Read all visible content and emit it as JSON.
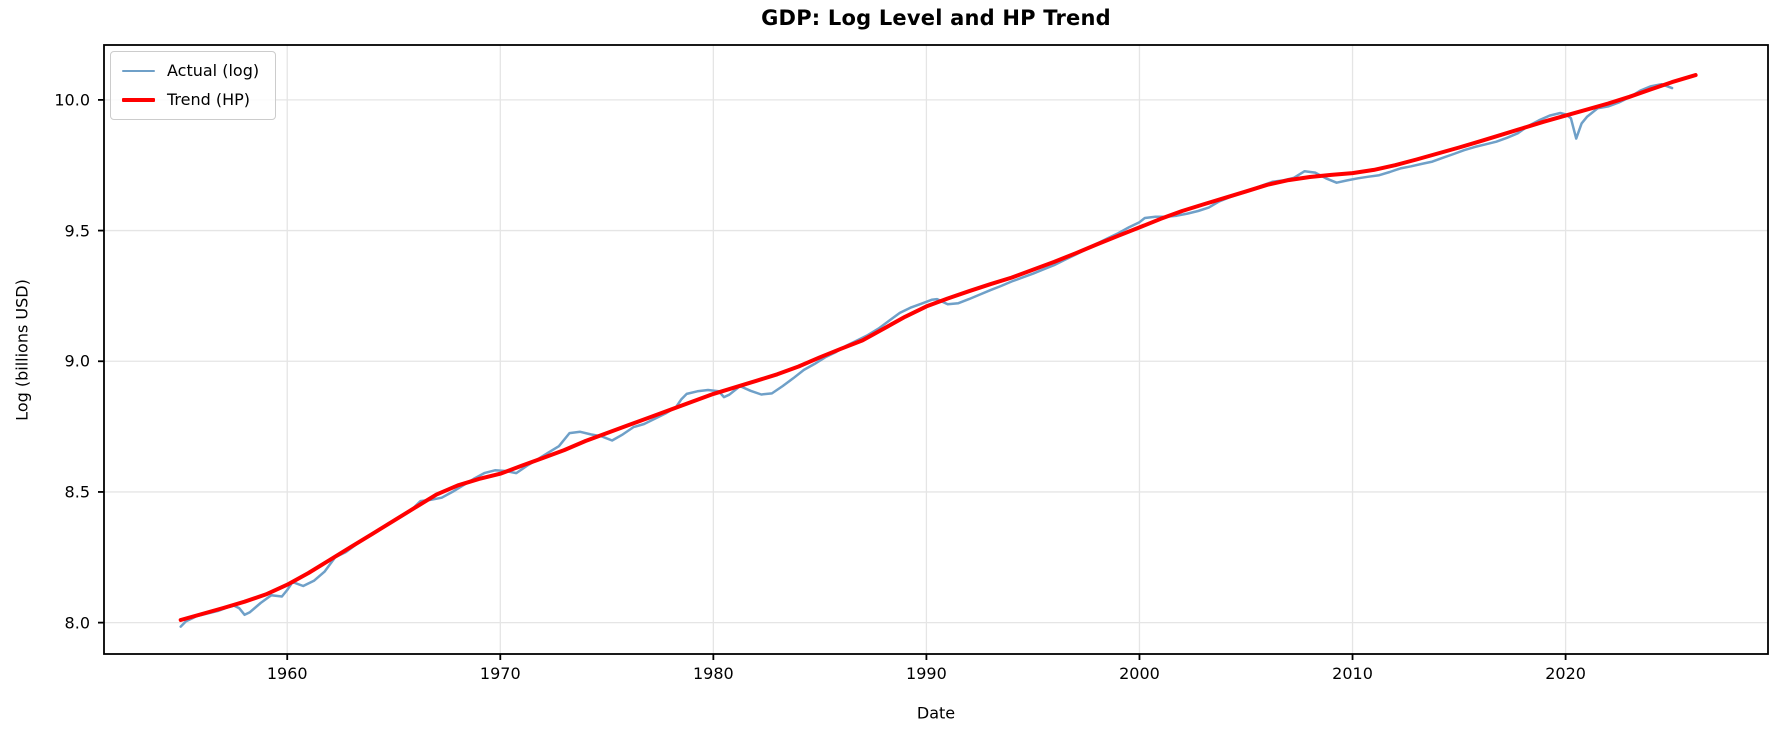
{
  "figure": {
    "background": "#ffffff",
    "grid_color": "#e5e5e5",
    "spine_color": "#000000",
    "tick_color": "#000000"
  },
  "chart_data": {
    "type": "line",
    "title": "GDP: Log Level and HP Trend",
    "xlabel": "Date",
    "ylabel": "Log (billions USD)",
    "xlim": [
      1951.4,
      2029.5
    ],
    "ylim": [
      7.88,
      10.21
    ],
    "grid": true,
    "legend_position": "upper left",
    "x_ticks": [
      {
        "v": 1960,
        "label": "1960"
      },
      {
        "v": 1970,
        "label": "1970"
      },
      {
        "v": 1980,
        "label": "1980"
      },
      {
        "v": 1990,
        "label": "1990"
      },
      {
        "v": 2000,
        "label": "2000"
      },
      {
        "v": 2010,
        "label": "2010"
      },
      {
        "v": 2020,
        "label": "2020"
      }
    ],
    "y_ticks": [
      {
        "v": 8.0,
        "label": "8.0"
      },
      {
        "v": 8.5,
        "label": "8.5"
      },
      {
        "v": 9.0,
        "label": "9.0"
      },
      {
        "v": 9.5,
        "label": "9.5"
      },
      {
        "v": 10.0,
        "label": "10.0"
      }
    ],
    "series": [
      {
        "name": "Actual (log)",
        "color": "#6fa0c8",
        "line_width": 2.5,
        "data": [
          [
            1955.0,
            7.985
          ],
          [
            1955.25,
            8.005
          ],
          [
            1955.5,
            8.015
          ],
          [
            1955.75,
            8.025
          ],
          [
            1956.25,
            8.035
          ],
          [
            1956.75,
            8.045
          ],
          [
            1957.25,
            8.06
          ],
          [
            1957.5,
            8.065
          ],
          [
            1957.75,
            8.055
          ],
          [
            1958.0,
            8.03
          ],
          [
            1958.25,
            8.04
          ],
          [
            1958.75,
            8.075
          ],
          [
            1959.25,
            8.105
          ],
          [
            1959.75,
            8.1
          ],
          [
            1960.0,
            8.125
          ],
          [
            1960.25,
            8.155
          ],
          [
            1960.75,
            8.14
          ],
          [
            1961.25,
            8.16
          ],
          [
            1961.75,
            8.195
          ],
          [
            1962.25,
            8.25
          ],
          [
            1962.75,
            8.27
          ],
          [
            1963.25,
            8.3
          ],
          [
            1963.75,
            8.325
          ],
          [
            1964.25,
            8.35
          ],
          [
            1964.75,
            8.38
          ],
          [
            1965.25,
            8.4
          ],
          [
            1965.75,
            8.425
          ],
          [
            1966.25,
            8.465
          ],
          [
            1966.75,
            8.47
          ],
          [
            1967.25,
            8.478
          ],
          [
            1967.75,
            8.5
          ],
          [
            1968.25,
            8.525
          ],
          [
            1968.75,
            8.55
          ],
          [
            1969.25,
            8.572
          ],
          [
            1969.75,
            8.583
          ],
          [
            1970.25,
            8.58
          ],
          [
            1970.75,
            8.572
          ],
          [
            1971.25,
            8.6
          ],
          [
            1971.75,
            8.625
          ],
          [
            1972.25,
            8.65
          ],
          [
            1972.75,
            8.675
          ],
          [
            1973.25,
            8.725
          ],
          [
            1973.75,
            8.73
          ],
          [
            1974.25,
            8.72
          ],
          [
            1974.75,
            8.713
          ],
          [
            1975.25,
            8.697
          ],
          [
            1975.75,
            8.72
          ],
          [
            1976.25,
            8.748
          ],
          [
            1976.75,
            8.76
          ],
          [
            1977.25,
            8.78
          ],
          [
            1977.75,
            8.8
          ],
          [
            1978.25,
            8.825
          ],
          [
            1978.5,
            8.855
          ],
          [
            1978.75,
            8.875
          ],
          [
            1979.25,
            8.885
          ],
          [
            1979.75,
            8.89
          ],
          [
            1980.25,
            8.885
          ],
          [
            1980.5,
            8.863
          ],
          [
            1980.75,
            8.872
          ],
          [
            1981.25,
            8.905
          ],
          [
            1981.75,
            8.887
          ],
          [
            1982.25,
            8.873
          ],
          [
            1982.75,
            8.877
          ],
          [
            1983.25,
            8.905
          ],
          [
            1983.75,
            8.935
          ],
          [
            1984.25,
            8.967
          ],
          [
            1984.75,
            8.99
          ],
          [
            1985.25,
            9.015
          ],
          [
            1985.75,
            9.035
          ],
          [
            1986.25,
            9.06
          ],
          [
            1986.75,
            9.08
          ],
          [
            1987.25,
            9.1
          ],
          [
            1987.75,
            9.125
          ],
          [
            1988.25,
            9.155
          ],
          [
            1988.75,
            9.185
          ],
          [
            1989.25,
            9.205
          ],
          [
            1989.75,
            9.22
          ],
          [
            1990.25,
            9.235
          ],
          [
            1990.5,
            9.238
          ],
          [
            1990.75,
            9.228
          ],
          [
            1991.0,
            9.218
          ],
          [
            1991.5,
            9.222
          ],
          [
            1992.0,
            9.238
          ],
          [
            1992.5,
            9.255
          ],
          [
            1993.0,
            9.272
          ],
          [
            1993.5,
            9.288
          ],
          [
            1994.0,
            9.305
          ],
          [
            1994.5,
            9.32
          ],
          [
            1995.0,
            9.335
          ],
          [
            1995.5,
            9.352
          ],
          [
            1996.0,
            9.368
          ],
          [
            1996.5,
            9.388
          ],
          [
            1997.0,
            9.408
          ],
          [
            1997.5,
            9.428
          ],
          [
            1998.0,
            9.45
          ],
          [
            1998.5,
            9.47
          ],
          [
            1999.0,
            9.49
          ],
          [
            1999.5,
            9.512
          ],
          [
            2000.0,
            9.532
          ],
          [
            2000.25,
            9.548
          ],
          [
            2000.75,
            9.553
          ],
          [
            2001.25,
            9.553
          ],
          [
            2001.75,
            9.557
          ],
          [
            2002.25,
            9.565
          ],
          [
            2002.75,
            9.575
          ],
          [
            2003.25,
            9.588
          ],
          [
            2003.75,
            9.612
          ],
          [
            2004.25,
            9.628
          ],
          [
            2004.75,
            9.642
          ],
          [
            2005.25,
            9.657
          ],
          [
            2005.75,
            9.672
          ],
          [
            2006.25,
            9.687
          ],
          [
            2006.75,
            9.692
          ],
          [
            2007.25,
            9.702
          ],
          [
            2007.75,
            9.727
          ],
          [
            2008.25,
            9.722
          ],
          [
            2008.75,
            9.7
          ],
          [
            2009.25,
            9.683
          ],
          [
            2009.75,
            9.692
          ],
          [
            2010.25,
            9.7
          ],
          [
            2010.75,
            9.706
          ],
          [
            2011.25,
            9.712
          ],
          [
            2011.75,
            9.724
          ],
          [
            2012.25,
            9.738
          ],
          [
            2012.75,
            9.746
          ],
          [
            2013.25,
            9.755
          ],
          [
            2013.75,
            9.764
          ],
          [
            2014.25,
            9.779
          ],
          [
            2014.75,
            9.793
          ],
          [
            2015.25,
            9.808
          ],
          [
            2015.75,
            9.82
          ],
          [
            2016.25,
            9.83
          ],
          [
            2016.75,
            9.84
          ],
          [
            2017.25,
            9.855
          ],
          [
            2017.75,
            9.872
          ],
          [
            2018.25,
            9.9
          ],
          [
            2018.75,
            9.922
          ],
          [
            2019.25,
            9.94
          ],
          [
            2019.75,
            9.95
          ],
          [
            2020.0,
            9.945
          ],
          [
            2020.25,
            9.93
          ],
          [
            2020.5,
            9.852
          ],
          [
            2020.75,
            9.91
          ],
          [
            2021.0,
            9.935
          ],
          [
            2021.5,
            9.968
          ],
          [
            2022.0,
            9.975
          ],
          [
            2022.5,
            9.99
          ],
          [
            2023.0,
            10.01
          ],
          [
            2023.5,
            10.035
          ],
          [
            2024.0,
            10.052
          ],
          [
            2024.5,
            10.06
          ],
          [
            2025.0,
            10.045
          ]
        ]
      },
      {
        "name": "Trend (HP)",
        "color": "#ff0000",
        "line_width": 4,
        "data": [
          [
            1955,
            8.01
          ],
          [
            1956,
            8.033
          ],
          [
            1957,
            8.056
          ],
          [
            1958,
            8.08
          ],
          [
            1959,
            8.108
          ],
          [
            1960,
            8.145
          ],
          [
            1961,
            8.19
          ],
          [
            1962,
            8.24
          ],
          [
            1963,
            8.29
          ],
          [
            1964,
            8.34
          ],
          [
            1965,
            8.39
          ],
          [
            1966,
            8.44
          ],
          [
            1967,
            8.49
          ],
          [
            1968,
            8.525
          ],
          [
            1969,
            8.55
          ],
          [
            1970,
            8.57
          ],
          [
            1971,
            8.6
          ],
          [
            1972,
            8.63
          ],
          [
            1973,
            8.66
          ],
          [
            1974,
            8.695
          ],
          [
            1975,
            8.725
          ],
          [
            1976,
            8.755
          ],
          [
            1977,
            8.785
          ],
          [
            1978,
            8.815
          ],
          [
            1979,
            8.845
          ],
          [
            1980,
            8.875
          ],
          [
            1981,
            8.9
          ],
          [
            1982,
            8.925
          ],
          [
            1983,
            8.95
          ],
          [
            1984,
            8.98
          ],
          [
            1985,
            9.015
          ],
          [
            1986,
            9.048
          ],
          [
            1987,
            9.08
          ],
          [
            1988,
            9.125
          ],
          [
            1989,
            9.17
          ],
          [
            1990,
            9.21
          ],
          [
            1991,
            9.24
          ],
          [
            1992,
            9.268
          ],
          [
            1993,
            9.295
          ],
          [
            1994,
            9.32
          ],
          [
            1995,
            9.35
          ],
          [
            1996,
            9.38
          ],
          [
            1997,
            9.413
          ],
          [
            1998,
            9.447
          ],
          [
            1999,
            9.48
          ],
          [
            2000,
            9.512
          ],
          [
            2001,
            9.545
          ],
          [
            2002,
            9.575
          ],
          [
            2003,
            9.6
          ],
          [
            2004,
            9.625
          ],
          [
            2005,
            9.65
          ],
          [
            2006,
            9.675
          ],
          [
            2007,
            9.693
          ],
          [
            2008,
            9.705
          ],
          [
            2009,
            9.713
          ],
          [
            2010,
            9.72
          ],
          [
            2011,
            9.732
          ],
          [
            2012,
            9.75
          ],
          [
            2013,
            9.772
          ],
          [
            2014,
            9.795
          ],
          [
            2015,
            9.818
          ],
          [
            2016,
            9.842
          ],
          [
            2017,
            9.867
          ],
          [
            2018,
            9.892
          ],
          [
            2019,
            9.917
          ],
          [
            2020,
            9.94
          ],
          [
            2021,
            9.963
          ],
          [
            2022,
            9.986
          ],
          [
            2023,
            10.012
          ],
          [
            2024,
            10.04
          ],
          [
            2025,
            10.068
          ],
          [
            2026.1,
            10.095
          ]
        ]
      }
    ]
  }
}
